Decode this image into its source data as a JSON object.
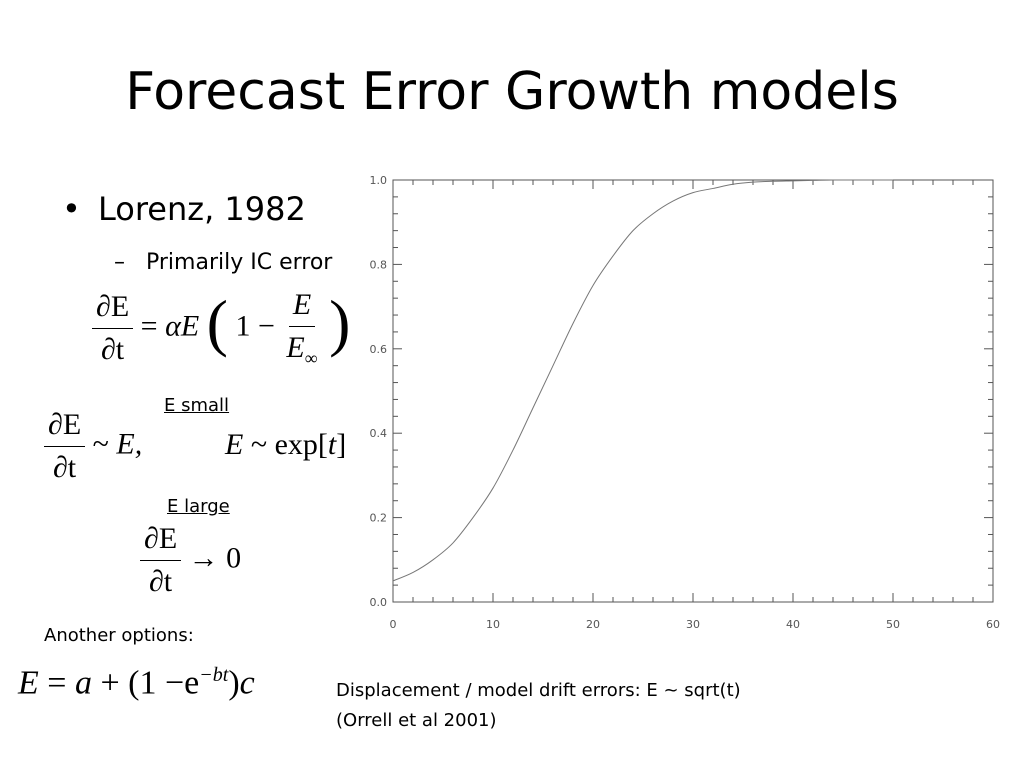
{
  "slide": {
    "title": "Forecast Error Growth models",
    "bullet_symbol": "•",
    "bullet": "Lorenz, 1982",
    "sub_dash": "–",
    "sub_bullet": "Primarily IC error",
    "label_small": "E small",
    "label_large": "E large",
    "another_options": "Another options:",
    "displacement_line1": "Displacement / model drift errors: E ~ sqrt(t)",
    "displacement_line2": "(Orrell et al 2001)"
  },
  "equations": {
    "lorenz": {
      "dE": "∂E",
      "dt": "∂t",
      "eq": "=",
      "alpha": "α",
      "E": "E",
      "one_minus": "1 −",
      "frac_num": "E",
      "frac_den": "E",
      "inf": "∞"
    },
    "small": {
      "dE": "∂E",
      "dt": "∂t",
      "rel": "~",
      "rhs": "E,",
      "E": "E",
      "rel2": "~",
      "exp": "exp[",
      "t": "t",
      "close": "]"
    },
    "large": {
      "dE": "∂E",
      "dt": "∂t",
      "arrow": "→",
      "zero": "0"
    },
    "other": {
      "lhs": "E",
      "eq": "=",
      "a": "a",
      "plus": "+",
      "open": "(1 −",
      "e": "e",
      "exp": "−bt",
      "close": ")",
      "c": "c"
    }
  },
  "chart_data": {
    "type": "line",
    "title": "",
    "xlabel": "",
    "ylabel": "",
    "xlim": [
      0,
      60
    ],
    "ylim": [
      0,
      1.0
    ],
    "x_ticks": [
      "0",
      "10",
      "20",
      "30",
      "40",
      "50",
      "60"
    ],
    "y_ticks": [
      "0.0",
      "0.2",
      "0.4",
      "0.6",
      "0.8",
      "1.0"
    ],
    "grid": false,
    "line_color": "#777777",
    "series": [
      {
        "x": [
          0,
          2,
          4,
          6,
          8,
          10,
          12,
          14,
          16,
          18,
          20,
          22,
          24,
          26,
          28,
          30,
          32,
          34,
          36,
          38,
          40,
          42,
          44,
          46,
          48,
          50
        ],
        "y": [
          0.05,
          0.07,
          0.1,
          0.14,
          0.2,
          0.27,
          0.36,
          0.46,
          0.56,
          0.66,
          0.75,
          0.82,
          0.88,
          0.92,
          0.95,
          0.97,
          0.98,
          0.99,
          0.995,
          0.997,
          0.998,
          0.999,
          1.0,
          1.0,
          1.0,
          1.0
        ]
      }
    ]
  }
}
